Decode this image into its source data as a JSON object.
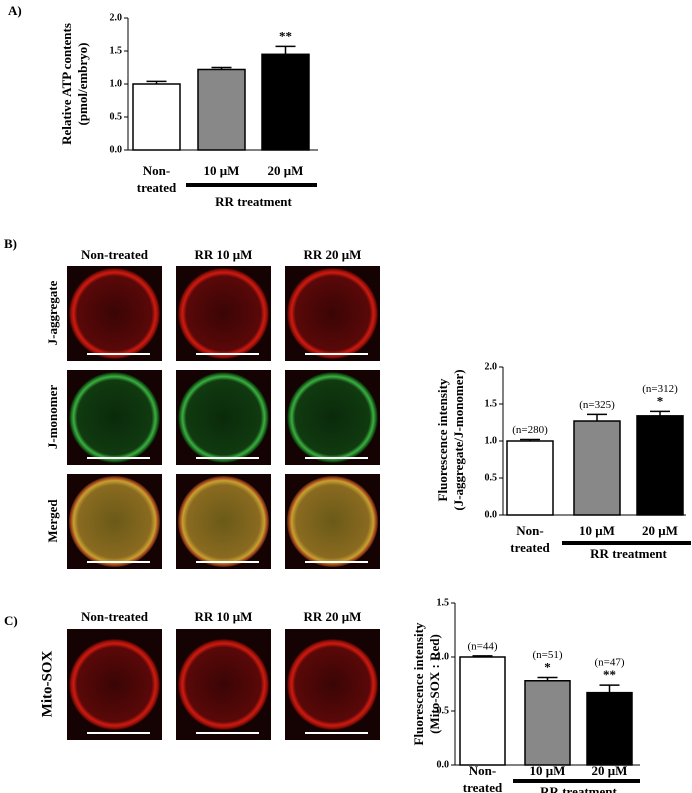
{
  "panels": {
    "labels": [
      "A)",
      "B)",
      "C)"
    ],
    "b_columns": [
      "Non-treated",
      "RR 10 μM",
      "RR 20 μM"
    ],
    "b_rows": [
      "J-aggregate",
      "J-monomer",
      "Merged"
    ],
    "c_columns": [
      "Non-treated",
      "RR 10 μM",
      "RR 20 μM"
    ],
    "c_rows": [
      "Mito-SOX"
    ]
  },
  "chart_data": [
    {
      "type": "bar",
      "ylabel": [
        "Relative ATP contents",
        "(pmol/embryo)"
      ],
      "categories": [
        [
          "Non-",
          "treated"
        ],
        [
          "10 μM"
        ],
        [
          "20 μM"
        ]
      ],
      "group_label": "RR treatment",
      "values": [
        1.0,
        1.22,
        1.45
      ],
      "errors": [
        0.04,
        0.03,
        0.12
      ],
      "colors": [
        "#ffffff",
        "#888888",
        "#000000"
      ],
      "significance": [
        null,
        null,
        "**"
      ],
      "ylim": [
        0,
        2
      ],
      "yticks": [
        {
          "value": 0,
          "label": "0.0"
        },
        0.5,
        {
          "value": 1,
          "label": "1.0"
        },
        1.5,
        {
          "value": 2,
          "label": "2.0"
        }
      ]
    },
    {
      "type": "bar",
      "ylabel": [
        "Fluorescence intensity",
        "(J-aggregate/J-monomer)"
      ],
      "categories": [
        [
          "Non-",
          "treated"
        ],
        [
          "10 μM"
        ],
        [
          "20 μM"
        ]
      ],
      "group_label": "RR treatment",
      "values": [
        1.0,
        1.27,
        1.34
      ],
      "errors": [
        0.02,
        0.09,
        0.06
      ],
      "colors": [
        "#ffffff",
        "#888888",
        "#000000"
      ],
      "sample_sizes": [
        "(n=280)",
        "(n=325)",
        "(n=312)"
      ],
      "significance": [
        null,
        null,
        "*"
      ],
      "ylim": [
        0,
        2
      ],
      "yticks": [
        {
          "value": 0,
          "label": "0.0"
        },
        0.5,
        {
          "value": 1,
          "label": "1.0"
        },
        1.5,
        {
          "value": 2,
          "label": "2.0"
        }
      ]
    },
    {
      "type": "bar",
      "ylabel": [
        "Fluorescence intensity",
        "(Mito-SOX : Red)"
      ],
      "categories": [
        [
          "Non-",
          "treated"
        ],
        [
          "10 μM"
        ],
        [
          "20 μM"
        ]
      ],
      "group_label": "RR treatment",
      "values": [
        1.0,
        0.78,
        0.67
      ],
      "errors": [
        0.01,
        0.03,
        0.07
      ],
      "colors": [
        "#ffffff",
        "#888888",
        "#000000"
      ],
      "sample_sizes": [
        "(n=44)",
        "(n=51)",
        "(n=47)"
      ],
      "significance": [
        null,
        "*",
        "**"
      ],
      "ylim": [
        0,
        1.5
      ],
      "yticks": [
        {
          "value": 0,
          "label": "0.0"
        },
        0.5,
        {
          "value": 1,
          "label": "1.0"
        },
        1.5
      ]
    }
  ]
}
